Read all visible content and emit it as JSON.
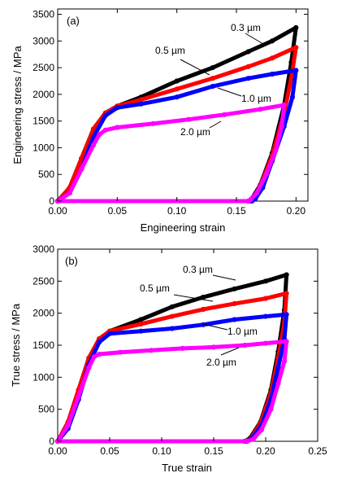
{
  "chart_data": [
    {
      "type": "line",
      "panel_label": "(a)",
      "xlabel": "Engineering strain",
      "ylabel": "Engineering stress / MPa",
      "xlim": [
        0,
        0.21
      ],
      "ylim": [
        0,
        3600
      ],
      "xticks": [
        0.0,
        0.05,
        0.1,
        0.15,
        0.2
      ],
      "xtick_labels": [
        "0.00",
        "0.05",
        "0.10",
        "0.15",
        "0.20"
      ],
      "yticks": [
        0,
        500,
        1000,
        1500,
        2000,
        2500,
        3000,
        3500
      ],
      "ytick_labels": [
        "0",
        "500",
        "1000",
        "1500",
        "2000",
        "2500",
        "3000",
        "3500"
      ],
      "grid": false,
      "series": [
        {
          "name": "0.3 µm",
          "color": "#000000",
          "x": [
            0.0,
            0.01,
            0.02,
            0.03,
            0.04,
            0.05,
            0.07,
            0.1,
            0.13,
            0.16,
            0.18,
            0.2,
            0.196,
            0.19,
            0.18,
            0.17,
            0.163,
            0.16,
            0.0
          ],
          "y": [
            0,
            250,
            800,
            1350,
            1650,
            1780,
            1950,
            2250,
            2500,
            2800,
            3000,
            3250,
            2600,
            1800,
            900,
            300,
            50,
            0,
            0
          ]
        },
        {
          "name": "0.5 µm",
          "color": "#ff0000",
          "x": [
            0.0,
            0.01,
            0.02,
            0.03,
            0.04,
            0.05,
            0.07,
            0.1,
            0.13,
            0.16,
            0.18,
            0.2,
            0.196,
            0.19,
            0.18,
            0.17,
            0.164,
            0.161,
            0.0
          ],
          "y": [
            0,
            250,
            800,
            1350,
            1650,
            1780,
            1900,
            2100,
            2300,
            2520,
            2680,
            2880,
            2300,
            1650,
            850,
            280,
            50,
            0,
            0
          ]
        },
        {
          "name": "1.0 µm",
          "color": "#0000ff",
          "x": [
            0.0,
            0.01,
            0.02,
            0.03,
            0.04,
            0.05,
            0.07,
            0.1,
            0.13,
            0.16,
            0.18,
            0.2,
            0.197,
            0.19,
            0.18,
            0.172,
            0.166,
            0.163,
            0.0
          ],
          "y": [
            0,
            150,
            600,
            1200,
            1600,
            1750,
            1820,
            1950,
            2150,
            2300,
            2380,
            2450,
            1950,
            1400,
            750,
            250,
            50,
            0,
            0
          ]
        },
        {
          "name": "2.0 µm",
          "color": "#ff00ff",
          "x": [
            0.0,
            0.01,
            0.02,
            0.03,
            0.035,
            0.04,
            0.05,
            0.08,
            0.11,
            0.14,
            0.17,
            0.19,
            0.188,
            0.183,
            0.175,
            0.167,
            0.162,
            0.16,
            0.0
          ],
          "y": [
            0,
            150,
            600,
            1050,
            1250,
            1330,
            1380,
            1450,
            1530,
            1620,
            1720,
            1800,
            1400,
            950,
            500,
            150,
            30,
            0,
            0
          ]
        }
      ],
      "annotations": [
        {
          "text": "0.3 µm",
          "series": "0.3 µm"
        },
        {
          "text": "0.5 µm",
          "series": "0.5 µm"
        },
        {
          "text": "1.0 µm",
          "series": "1.0 µm"
        },
        {
          "text": "2.0 µm",
          "series": "2.0 µm"
        }
      ]
    },
    {
      "type": "line",
      "panel_label": "(b)",
      "xlabel": "True strain",
      "ylabel": "True stress / MPa",
      "xlim": [
        0,
        0.25
      ],
      "ylim": [
        0,
        3000
      ],
      "xticks": [
        0.0,
        0.05,
        0.1,
        0.15,
        0.2,
        0.25
      ],
      "xtick_labels": [
        "0.00",
        "0.05",
        "0.10",
        "0.15",
        "0.20",
        "0.25"
      ],
      "yticks": [
        0,
        500,
        1000,
        1500,
        2000,
        2500,
        3000
      ],
      "ytick_labels": [
        "0",
        "500",
        "1000",
        "1500",
        "2000",
        "2500",
        "3000"
      ],
      "grid": false,
      "series": [
        {
          "name": "0.3 µm",
          "color": "#000000",
          "x": [
            0.0,
            0.01,
            0.02,
            0.03,
            0.04,
            0.05,
            0.08,
            0.11,
            0.14,
            0.17,
            0.2,
            0.22,
            0.218,
            0.212,
            0.205,
            0.195,
            0.185,
            0.18,
            0.0
          ],
          "y": [
            0,
            300,
            800,
            1300,
            1600,
            1720,
            1900,
            2100,
            2250,
            2380,
            2500,
            2600,
            2050,
            1400,
            800,
            300,
            50,
            0,
            0
          ]
        },
        {
          "name": "0.5 µm",
          "color": "#ff0000",
          "x": [
            0.0,
            0.01,
            0.02,
            0.03,
            0.04,
            0.05,
            0.08,
            0.11,
            0.14,
            0.17,
            0.2,
            0.22,
            0.218,
            0.212,
            0.205,
            0.195,
            0.186,
            0.181,
            0.0
          ],
          "y": [
            0,
            300,
            800,
            1300,
            1600,
            1720,
            1830,
            1950,
            2060,
            2150,
            2230,
            2310,
            1850,
            1300,
            750,
            280,
            50,
            0,
            0
          ]
        },
        {
          "name": "1.0 µm",
          "color": "#0000ff",
          "x": [
            0.0,
            0.01,
            0.02,
            0.03,
            0.04,
            0.05,
            0.08,
            0.11,
            0.14,
            0.17,
            0.2,
            0.22,
            0.218,
            0.212,
            0.205,
            0.196,
            0.187,
            0.182,
            0.0
          ],
          "y": [
            0,
            200,
            650,
            1200,
            1550,
            1680,
            1720,
            1760,
            1820,
            1900,
            1950,
            1980,
            1600,
            1150,
            650,
            250,
            50,
            0,
            0
          ]
        },
        {
          "name": "2.0 µm",
          "color": "#ff00ff",
          "x": [
            0.0,
            0.01,
            0.02,
            0.03,
            0.035,
            0.04,
            0.06,
            0.09,
            0.12,
            0.15,
            0.18,
            0.2,
            0.22,
            0.218,
            0.212,
            0.205,
            0.196,
            0.188,
            0.182,
            0.0
          ],
          "y": [
            0,
            250,
            700,
            1150,
            1320,
            1360,
            1390,
            1420,
            1450,
            1470,
            1500,
            1530,
            1560,
            1250,
            900,
            500,
            180,
            30,
            0,
            0
          ]
        }
      ],
      "annotations": [
        {
          "text": "0.3 µm",
          "series": "0.3 µm"
        },
        {
          "text": "0.5 µm",
          "series": "0.5 µm"
        },
        {
          "text": "1.0 µm",
          "series": "1.0 µm"
        },
        {
          "text": "2.0 µm",
          "series": "2.0 µm"
        }
      ]
    }
  ]
}
